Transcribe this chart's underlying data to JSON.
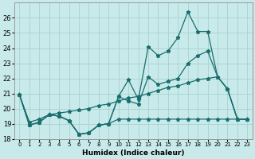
{
  "xlabel": "Humidex (Indice chaleur)",
  "x_values": [
    0,
    1,
    2,
    3,
    4,
    5,
    6,
    7,
    8,
    9,
    10,
    11,
    12,
    13,
    14,
    15,
    16,
    17,
    18,
    19,
    20,
    21,
    22,
    23
  ],
  "line_max": [
    20.9,
    18.9,
    19.1,
    19.6,
    19.5,
    19.2,
    18.3,
    18.4,
    18.9,
    19.0,
    20.8,
    21.9,
    20.6,
    24.1,
    23.5,
    23.8,
    24.7,
    26.4,
    25.1,
    25.1,
    22.1,
    21.3,
    19.3,
    19.3
  ],
  "line_mid": [
    20.9,
    18.9,
    19.1,
    19.6,
    19.5,
    19.2,
    18.3,
    18.4,
    18.9,
    19.0,
    20.8,
    20.5,
    20.3,
    22.1,
    21.6,
    21.8,
    22.0,
    23.0,
    23.5,
    23.8,
    22.1,
    21.3,
    19.3,
    19.3
  ],
  "line_trend": [
    20.9,
    19.1,
    19.3,
    19.6,
    19.7,
    19.8,
    19.9,
    20.0,
    20.2,
    20.3,
    20.5,
    20.7,
    20.8,
    21.0,
    21.2,
    21.4,
    21.5,
    21.7,
    21.9,
    22.0,
    22.1,
    21.3,
    19.3,
    19.3
  ],
  "line_flat": [
    20.9,
    18.9,
    19.1,
    19.6,
    19.5,
    19.2,
    18.3,
    18.4,
    18.9,
    19.0,
    19.3,
    19.3,
    19.3,
    19.3,
    19.3,
    19.3,
    19.3,
    19.3,
    19.3,
    19.3,
    19.3,
    19.3,
    19.3,
    19.3
  ],
  "bg_color": "#c8eaea",
  "grid_color": "#aad0d0",
  "line_color": "#1a6e6e",
  "ylim": [
    18,
    27
  ],
  "xlim": [
    -0.5,
    23.5
  ],
  "yticks": [
    18,
    19,
    20,
    21,
    22,
    23,
    24,
    25,
    26
  ],
  "xticks": [
    0,
    1,
    2,
    3,
    4,
    5,
    6,
    7,
    8,
    9,
    10,
    11,
    12,
    13,
    14,
    15,
    16,
    17,
    18,
    19,
    20,
    21,
    22,
    23
  ],
  "ytick_labels": [
    "18",
    "19",
    "20",
    "21",
    "22",
    "23",
    "24",
    "25",
    "26"
  ],
  "xtick_labels": [
    "0",
    "1",
    "2",
    "3",
    "4",
    "5",
    "6",
    "7",
    "8",
    "9",
    "10",
    "11",
    "12",
    "13",
    "14",
    "15",
    "16",
    "17",
    "18",
    "19",
    "20",
    "21",
    "22",
    "23"
  ]
}
